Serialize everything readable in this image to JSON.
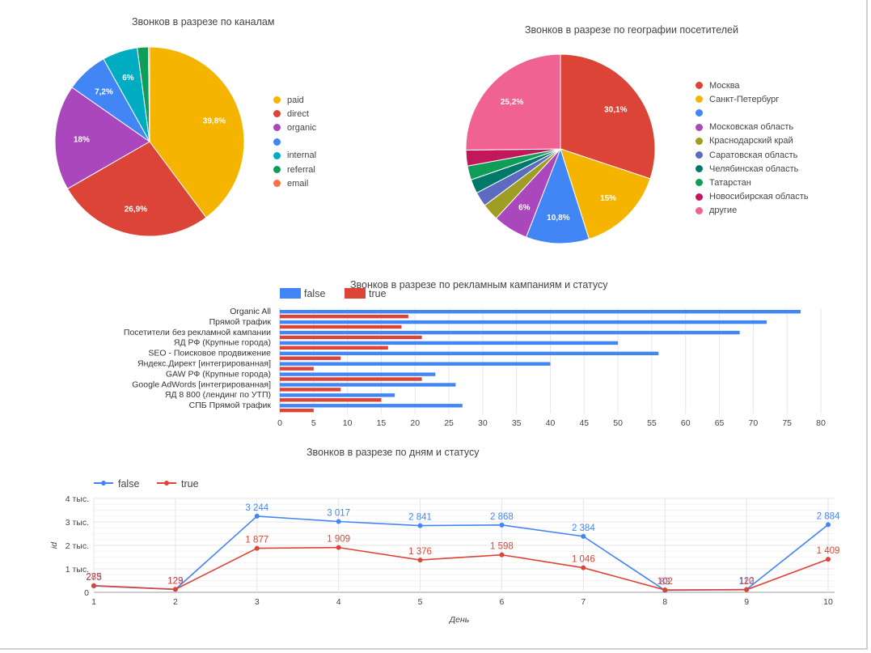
{
  "charts": {
    "channels": {
      "title": "Звонков в разрезе по каналам",
      "chart_data": {
        "type": "pie",
        "title": "Звонков в разрезе по каналам",
        "legend_position": "right",
        "slices": [
          {
            "label": "paid",
            "value": 39.8,
            "display": "39,8%",
            "color": "#F4B400"
          },
          {
            "label": "direct",
            "value": 26.9,
            "display": "26,9%",
            "color": "#DB4437"
          },
          {
            "label": "organic",
            "value": 18.0,
            "display": "18%",
            "color": "#AB47BC"
          },
          {
            "label": "",
            "value": 7.2,
            "display": "7,2%",
            "color": "#4285F4"
          },
          {
            "label": "internal",
            "value": 6.0,
            "display": "6%",
            "color": "#00ACC1"
          },
          {
            "label": "referral",
            "value": 1.9,
            "display": "",
            "color": "#0F9D58"
          },
          {
            "label": "email",
            "value": 0.2,
            "display": "",
            "color": "#FF7043"
          }
        ]
      }
    },
    "geo": {
      "title": "Звонков в разрезе по географии посетителей",
      "chart_data": {
        "type": "pie",
        "title": "Звонков в разрезе по географии посетителей",
        "legend_position": "right",
        "slices": [
          {
            "label": "Москва",
            "value": 30.1,
            "display": "30,1%",
            "color": "#DB4437"
          },
          {
            "label": "Санкт-Петербург",
            "value": 15.0,
            "display": "15%",
            "color": "#F4B400"
          },
          {
            "label": "",
            "value": 10.8,
            "display": "10,8%",
            "color": "#4285F4"
          },
          {
            "label": "Московская область",
            "value": 6.0,
            "display": "6%",
            "color": "#AB47BC"
          },
          {
            "label": "Краснодарский край",
            "value": 2.9,
            "display": "",
            "color": "#9E9D24"
          },
          {
            "label": "Саратовская область",
            "value": 2.5,
            "display": "",
            "color": "#5C6BC0"
          },
          {
            "label": "Челябинская область",
            "value": 2.4,
            "display": "",
            "color": "#00796B"
          },
          {
            "label": "Татарстан",
            "value": 2.4,
            "display": "",
            "color": "#0F9D58"
          },
          {
            "label": "Новосибирская область",
            "value": 2.7,
            "display": "",
            "color": "#C2185B"
          },
          {
            "label": "другие",
            "value": 25.2,
            "display": "25,2%",
            "color": "#F06292"
          }
        ]
      }
    },
    "campaigns": {
      "title": "Звонков в разрезе по рекламным кампаниям и статусу",
      "chart_data": {
        "type": "bar",
        "orientation": "horizontal",
        "title": "Звонков в разрезе по рекламным кампаниям и статусу",
        "legend_position": "top-left",
        "categories": [
          "Organic All",
          "Прямой трафик",
          "Посетители без рекламной кампании",
          "ЯД РФ (Крупные города)",
          "SEO - Поисковое продвижение",
          "Яндекс.Директ [интегрированная]",
          "GAW РФ (Крупные города)",
          "Google AdWords [интегрированная]",
          "ЯД 8 800 (лендинг по УТП)",
          "СПБ Прямой трафик"
        ],
        "series": [
          {
            "name": "false",
            "color": "#4285F4",
            "values": [
              77,
              72,
              68,
              50,
              56,
              40,
              23,
              26,
              17,
              27
            ]
          },
          {
            "name": "true",
            "color": "#DB4437",
            "values": [
              19,
              18,
              21,
              16,
              9,
              5,
              21,
              9,
              15,
              5
            ]
          }
        ],
        "xlim": [
          0,
          80
        ],
        "x_ticks": [
          0,
          5,
          10,
          15,
          20,
          25,
          30,
          35,
          40,
          45,
          50,
          55,
          60,
          65,
          70,
          75,
          80
        ],
        "x_tick_labels": [
          "0",
          "5",
          "10",
          "15",
          "20",
          "25",
          "30",
          "35",
          "40",
          "45",
          "50",
          "55",
          "60",
          "65",
          "70",
          "75",
          "80"
        ],
        "grid": true
      }
    },
    "days": {
      "title": "Звонков в разрезе по дням и статусу",
      "chart_data": {
        "type": "line",
        "title": "Звонков в разрезе по дням и статусу",
        "xlabel": "День",
        "ylabel": "id",
        "legend_position": "top-left",
        "x": [
          1,
          2,
          3,
          4,
          5,
          6,
          7,
          8,
          9,
          10
        ],
        "ylim": [
          0,
          4000
        ],
        "y_ticks": [
          0,
          1000,
          2000,
          3000,
          4000
        ],
        "y_tick_labels": [
          "0",
          "1 тыс.",
          "2 тыс.",
          "3 тыс.",
          "4 тыс."
        ],
        "grid": true,
        "series": [
          {
            "name": "false",
            "color": "#4285F4",
            "values": [
              273,
              123,
              3244,
              3017,
              2841,
              2868,
              2384,
              83,
              122,
              2884
            ],
            "labels": [
              "273",
              "123",
              "3 244",
              "3 017",
              "2 841",
              "2 868",
              "2 384",
              "83",
              "122",
              "2 884"
            ]
          },
          {
            "name": "true",
            "color": "#DB4437",
            "values": [
              285,
              129,
              1877,
              1909,
              1376,
              1598,
              1046,
              102,
              110,
              1409
            ],
            "labels": [
              "285",
              "129",
              "1 877",
              "1 909",
              "1 376",
              "1 598",
              "1 046",
              "102",
              "110",
              "1 409"
            ]
          }
        ]
      }
    }
  }
}
